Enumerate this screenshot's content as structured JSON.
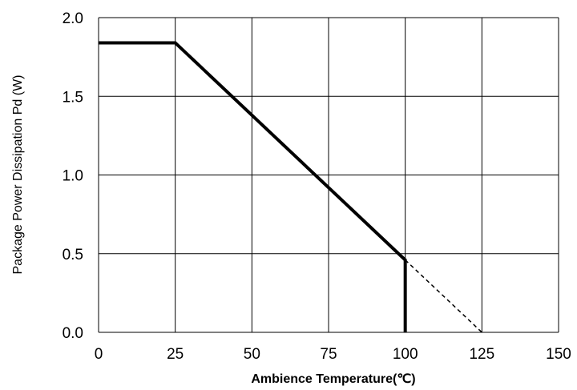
{
  "chart_data": {
    "type": "line",
    "title": "",
    "xlabel": "Ambience Temperature(℃)",
    "ylabel": "Package Power Dissipation Pd (W)",
    "xlim": [
      0,
      150
    ],
    "ylim": [
      0,
      2.0
    ],
    "x_ticks": [
      0,
      25,
      50,
      75,
      100,
      125,
      150
    ],
    "x_tick_labels": [
      "0",
      "25",
      "50",
      "75",
      "100",
      "125",
      "150"
    ],
    "y_ticks": [
      0,
      0.5,
      1.0,
      1.5,
      2.0
    ],
    "y_tick_labels": [
      "0.0",
      "0.5",
      "1.0",
      "1.5",
      "2.0"
    ],
    "grid": true,
    "legend": "none",
    "series": [
      {
        "style": "solid",
        "color": "#000000",
        "points": [
          {
            "x": 0,
            "y": 1.84
          },
          {
            "x": 25,
            "y": 1.84
          },
          {
            "x": 100,
            "y": 0.46
          },
          {
            "x": 100,
            "y": 0
          }
        ]
      },
      {
        "style": "dashed",
        "color": "#000000",
        "points": [
          {
            "x": 100,
            "y": 0.46
          },
          {
            "x": 125,
            "y": 0
          }
        ]
      }
    ]
  }
}
